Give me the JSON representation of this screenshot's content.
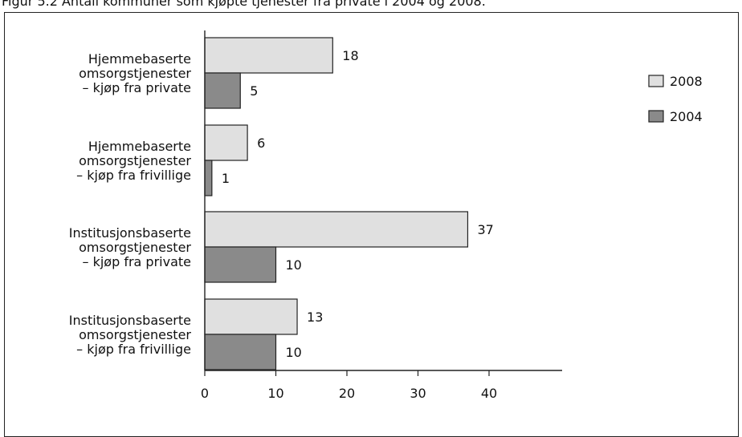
{
  "figure": {
    "caption": "Figur 5.2 Antall kommuner som kjøpte tjenester fra private i 2004 og 2008."
  },
  "chart_data": {
    "type": "bar",
    "orientation": "horizontal",
    "categories": [
      [
        "Hjemmebaserte",
        "omsorgstjenester",
        "– kjøp fra private"
      ],
      [
        "Hjemmebaserte",
        "omsorgstjenester",
        "– kjøp fra frivillige"
      ],
      [
        "Institusjonsbaserte",
        "omsorgstjenester",
        "– kjøp fra private"
      ],
      [
        "Institusjonsbaserte",
        "omsorgstjenester",
        "– kjøp fra frivillige"
      ]
    ],
    "series": [
      {
        "name": "2008",
        "values": [
          18,
          6,
          37,
          13
        ],
        "color": "#e0e0e0"
      },
      {
        "name": "2004",
        "values": [
          5,
          1,
          10,
          10
        ],
        "color": "#8a8a8a"
      }
    ],
    "xticks": [
      0,
      10,
      20,
      30,
      40
    ],
    "xlim": [
      0,
      50
    ],
    "grid": false,
    "legend_position": "top-right"
  }
}
